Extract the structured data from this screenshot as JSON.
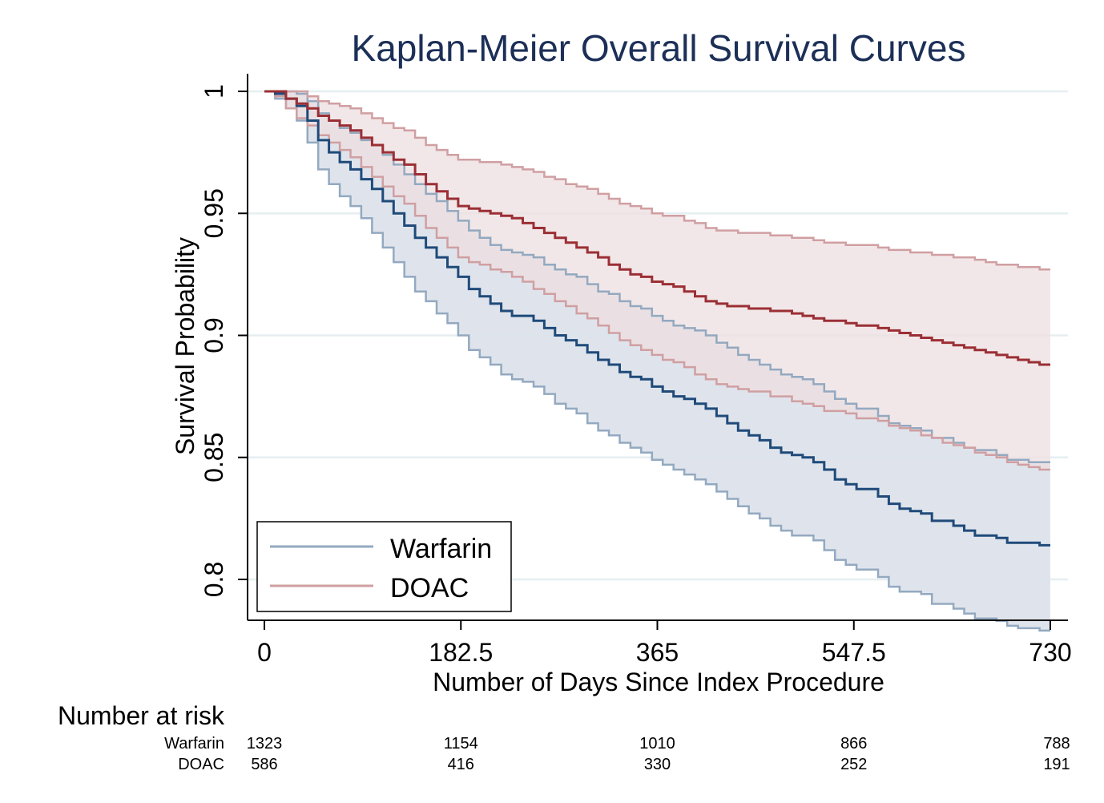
{
  "chart_data": {
    "type": "line",
    "title": "Kaplan-Meier Overall Survival Curves",
    "xlabel": "Number of Days Since Index Procedure",
    "ylabel": "Survival Probability",
    "xlim": [
      0,
      730
    ],
    "ylim": [
      0.79,
      1.0
    ],
    "x_ticks": [
      0,
      182.5,
      365,
      547.5,
      730
    ],
    "x_tick_labels": [
      "0",
      "182.5",
      "365",
      "547.5",
      "730"
    ],
    "y_ticks": [
      0.8,
      0.85,
      0.9,
      0.95,
      1
    ],
    "y_tick_labels": [
      "0.8",
      "0.85",
      "0.9",
      "0.95",
      "1"
    ],
    "grid": true,
    "legend_position": "bottom-left",
    "series": [
      {
        "name": "Warfarin",
        "line_color": "#1f4a7a",
        "ci_color": "#93a9c0",
        "fill_color": "#dde3eb",
        "x": [
          0,
          10,
          20,
          30,
          40,
          50,
          60,
          70,
          80,
          90,
          100,
          110,
          120,
          130,
          140,
          150,
          160,
          170,
          180,
          190,
          200,
          210,
          220,
          230,
          240,
          250,
          260,
          270,
          280,
          290,
          300,
          310,
          320,
          330,
          340,
          350,
          360,
          370,
          380,
          390,
          400,
          410,
          420,
          430,
          440,
          450,
          460,
          470,
          480,
          490,
          500,
          510,
          520,
          530,
          540,
          550,
          560,
          570,
          580,
          590,
          600,
          610,
          620,
          630,
          640,
          650,
          660,
          670,
          680,
          690,
          700,
          710,
          720,
          730
        ],
        "survival": [
          1.0,
          0.999,
          0.997,
          0.994,
          0.988,
          0.98,
          0.975,
          0.971,
          0.968,
          0.964,
          0.96,
          0.955,
          0.95,
          0.945,
          0.94,
          0.936,
          0.932,
          0.928,
          0.924,
          0.919,
          0.916,
          0.913,
          0.91,
          0.908,
          0.908,
          0.906,
          0.903,
          0.9,
          0.898,
          0.896,
          0.893,
          0.89,
          0.888,
          0.885,
          0.883,
          0.882,
          0.879,
          0.877,
          0.875,
          0.874,
          0.872,
          0.87,
          0.867,
          0.864,
          0.861,
          0.859,
          0.857,
          0.854,
          0.852,
          0.851,
          0.85,
          0.848,
          0.845,
          0.841,
          0.839,
          0.837,
          0.837,
          0.834,
          0.831,
          0.829,
          0.828,
          0.827,
          0.824,
          0.824,
          0.822,
          0.82,
          0.818,
          0.818,
          0.817,
          0.815,
          0.815,
          0.815,
          0.814,
          0.814
        ],
        "lower_ci": [
          1.0,
          0.997,
          0.993,
          0.988,
          0.979,
          0.968,
          0.962,
          0.957,
          0.953,
          0.948,
          0.942,
          0.936,
          0.93,
          0.924,
          0.918,
          0.914,
          0.909,
          0.905,
          0.9,
          0.894,
          0.891,
          0.888,
          0.884,
          0.882,
          0.881,
          0.879,
          0.876,
          0.872,
          0.87,
          0.868,
          0.864,
          0.861,
          0.859,
          0.856,
          0.854,
          0.852,
          0.849,
          0.847,
          0.845,
          0.843,
          0.841,
          0.839,
          0.836,
          0.833,
          0.83,
          0.827,
          0.825,
          0.822,
          0.82,
          0.818,
          0.818,
          0.816,
          0.812,
          0.808,
          0.806,
          0.804,
          0.804,
          0.801,
          0.797,
          0.795,
          0.795,
          0.794,
          0.79,
          0.79,
          0.788,
          0.786,
          0.784,
          0.784,
          0.783,
          0.781,
          0.78,
          0.78,
          0.779,
          0.779
        ],
        "upper_ci": [
          1.0,
          1.0,
          1.0,
          0.999,
          0.996,
          0.991,
          0.988,
          0.985,
          0.983,
          0.98,
          0.978,
          0.974,
          0.97,
          0.966,
          0.962,
          0.958,
          0.955,
          0.951,
          0.947,
          0.943,
          0.94,
          0.937,
          0.935,
          0.934,
          0.933,
          0.932,
          0.929,
          0.927,
          0.925,
          0.924,
          0.921,
          0.918,
          0.917,
          0.914,
          0.912,
          0.911,
          0.908,
          0.906,
          0.904,
          0.903,
          0.902,
          0.9,
          0.897,
          0.895,
          0.892,
          0.89,
          0.888,
          0.886,
          0.884,
          0.883,
          0.882,
          0.88,
          0.877,
          0.874,
          0.872,
          0.87,
          0.87,
          0.867,
          0.864,
          0.863,
          0.862,
          0.861,
          0.858,
          0.858,
          0.856,
          0.854,
          0.853,
          0.853,
          0.851,
          0.849,
          0.849,
          0.848,
          0.848,
          0.848
        ]
      },
      {
        "name": "DOAC",
        "line_color": "#9b2f35",
        "ci_color": "#d09fa2",
        "fill_color": "#eedfe0",
        "x": [
          0,
          10,
          20,
          30,
          40,
          50,
          60,
          70,
          80,
          90,
          100,
          110,
          120,
          130,
          140,
          150,
          160,
          170,
          180,
          190,
          200,
          210,
          220,
          230,
          240,
          250,
          260,
          270,
          280,
          290,
          300,
          310,
          320,
          330,
          340,
          350,
          360,
          370,
          380,
          390,
          400,
          410,
          420,
          430,
          440,
          450,
          460,
          470,
          480,
          490,
          500,
          510,
          520,
          530,
          540,
          550,
          560,
          570,
          580,
          590,
          600,
          610,
          620,
          630,
          640,
          650,
          660,
          670,
          680,
          690,
          700,
          710,
          720,
          730
        ],
        "survival": [
          1.0,
          1.0,
          0.997,
          0.995,
          0.993,
          0.99,
          0.988,
          0.986,
          0.984,
          0.981,
          0.978,
          0.975,
          0.972,
          0.97,
          0.966,
          0.962,
          0.959,
          0.956,
          0.953,
          0.952,
          0.951,
          0.95,
          0.949,
          0.948,
          0.946,
          0.944,
          0.942,
          0.94,
          0.938,
          0.936,
          0.934,
          0.932,
          0.929,
          0.927,
          0.925,
          0.924,
          0.922,
          0.921,
          0.92,
          0.918,
          0.916,
          0.914,
          0.913,
          0.912,
          0.912,
          0.911,
          0.911,
          0.91,
          0.91,
          0.909,
          0.908,
          0.907,
          0.906,
          0.906,
          0.905,
          0.904,
          0.904,
          0.903,
          0.902,
          0.901,
          0.9,
          0.899,
          0.898,
          0.897,
          0.896,
          0.895,
          0.894,
          0.893,
          0.892,
          0.891,
          0.89,
          0.889,
          0.888,
          0.888
        ],
        "lower_ci": [
          1.0,
          0.998,
          0.993,
          0.989,
          0.986,
          0.982,
          0.979,
          0.976,
          0.973,
          0.969,
          0.965,
          0.961,
          0.957,
          0.954,
          0.949,
          0.944,
          0.94,
          0.936,
          0.932,
          0.93,
          0.929,
          0.927,
          0.926,
          0.924,
          0.922,
          0.919,
          0.917,
          0.914,
          0.912,
          0.909,
          0.907,
          0.904,
          0.901,
          0.898,
          0.896,
          0.894,
          0.892,
          0.89,
          0.889,
          0.887,
          0.884,
          0.882,
          0.88,
          0.879,
          0.878,
          0.877,
          0.877,
          0.875,
          0.875,
          0.873,
          0.872,
          0.871,
          0.869,
          0.869,
          0.868,
          0.866,
          0.866,
          0.865,
          0.863,
          0.862,
          0.861,
          0.859,
          0.858,
          0.856,
          0.855,
          0.854,
          0.852,
          0.851,
          0.85,
          0.848,
          0.847,
          0.846,
          0.845,
          0.845
        ],
        "upper_ci": [
          1.0,
          1.0,
          1.0,
          1.0,
          0.998,
          0.996,
          0.995,
          0.994,
          0.993,
          0.991,
          0.989,
          0.987,
          0.985,
          0.984,
          0.981,
          0.978,
          0.976,
          0.974,
          0.972,
          0.972,
          0.971,
          0.971,
          0.97,
          0.969,
          0.968,
          0.967,
          0.965,
          0.964,
          0.962,
          0.961,
          0.96,
          0.958,
          0.956,
          0.954,
          0.953,
          0.952,
          0.95,
          0.949,
          0.949,
          0.947,
          0.946,
          0.944,
          0.943,
          0.943,
          0.942,
          0.942,
          0.942,
          0.941,
          0.941,
          0.94,
          0.94,
          0.939,
          0.938,
          0.938,
          0.937,
          0.937,
          0.937,
          0.936,
          0.935,
          0.935,
          0.934,
          0.934,
          0.933,
          0.933,
          0.932,
          0.932,
          0.931,
          0.93,
          0.929,
          0.929,
          0.928,
          0.928,
          0.927,
          0.927
        ]
      }
    ]
  },
  "legend": {
    "items": [
      "Warfarin",
      "DOAC"
    ]
  },
  "risk_table": {
    "heading": "Number at risk",
    "times": [
      "0",
      "182.5",
      "365",
      "547.5",
      "730"
    ],
    "rows": [
      {
        "label": "Warfarin",
        "values": [
          "1323",
          "1154",
          "1010",
          "866",
          "788"
        ]
      },
      {
        "label": "DOAC",
        "values": [
          "586",
          "416",
          "330",
          "252",
          "191"
        ]
      }
    ]
  }
}
